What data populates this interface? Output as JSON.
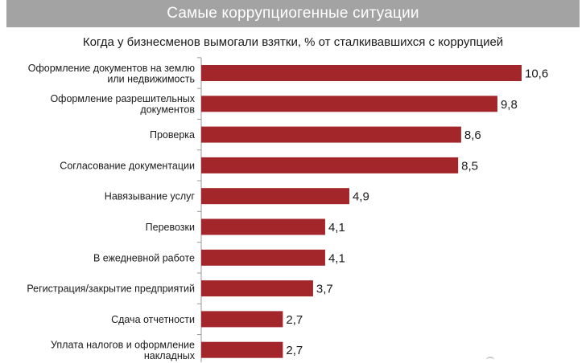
{
  "header": {
    "title": "Самые коррупциогенные ситуации"
  },
  "chart_data": {
    "type": "bar",
    "orientation": "horizontal",
    "title": "Когда у бизнесменов вымогали взятки, % от сталкивавшихся с коррупцией",
    "categories": [
      [
        "Оформление документов на землю",
        "или недвижимость"
      ],
      [
        "Оформление разрешительных",
        "документов"
      ],
      [
        "Проверка"
      ],
      [
        "Согласование документации"
      ],
      [
        "Навязывание услуг"
      ],
      [
        "Перевозки"
      ],
      [
        "В ежедневной работе"
      ],
      [
        "Регистрация/закрытие предприятий"
      ],
      [
        "Сдача отчетности"
      ],
      [
        "Уплата налогов и оформление",
        "накладных"
      ]
    ],
    "values": [
      10.6,
      9.8,
      8.6,
      8.5,
      4.9,
      4.1,
      4.1,
      3.7,
      2.7,
      2.7
    ],
    "value_labels": [
      "10,6",
      "9,8",
      "8,6",
      "8,5",
      "4,9",
      "4,1",
      "4,1",
      "3,7",
      "2,7",
      "2,7"
    ],
    "bar_color": "#a3262b",
    "axis_color": "#9a9a9a",
    "xlim": [
      0,
      10.6
    ],
    "grid": false,
    "legend": "none"
  }
}
